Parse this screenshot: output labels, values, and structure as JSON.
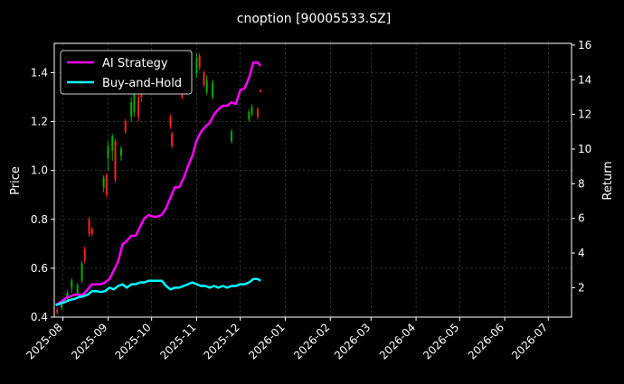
{
  "chart_data": {
    "type": "line",
    "title": "cnoption [90005533.SZ]",
    "left_axis": {
      "label": "Price",
      "ylim": [
        0.4,
        1.52
      ],
      "ticks": [
        "0.4",
        "0.6",
        "0.8",
        "1.0",
        "1.2",
        "1.4"
      ]
    },
    "right_axis": {
      "label": "Return",
      "ylim": [
        0.3,
        16.1
      ],
      "ticks": [
        "2",
        "4",
        "6",
        "8",
        "10",
        "12",
        "14",
        "16"
      ]
    },
    "x_axis": {
      "xlim": [
        "2025-07-26",
        "2026-07-17"
      ],
      "ticks": [
        "2025-08",
        "2025-09",
        "2025-10",
        "2025-11",
        "2025-12",
        "2026-01",
        "2026-02",
        "2026-03",
        "2026-04",
        "2026-05",
        "2026-06",
        "2026-07"
      ]
    },
    "grid": true,
    "legend": {
      "placement": "top-left",
      "entries": [
        {
          "name": "AI Strategy",
          "color": "#ff00ff"
        },
        {
          "name": "Buy-and-Hold",
          "color": "#00ffff"
        }
      ]
    },
    "candle_colors": {
      "up": "#00b000",
      "down": "#ff2020"
    },
    "series": [
      {
        "name": "AI Strategy",
        "axis": "right",
        "color": "#ff00ff",
        "x": [
          "2025-07-27",
          "2025-07-31",
          "2025-08-03",
          "2025-08-06",
          "2025-08-09",
          "2025-08-12",
          "2025-08-15",
          "2025-08-18",
          "2025-08-21",
          "2025-08-24",
          "2025-08-27",
          "2025-08-30",
          "2025-09-02",
          "2025-09-05",
          "2025-09-08",
          "2025-09-11",
          "2025-09-14",
          "2025-09-17",
          "2025-09-20",
          "2025-09-23",
          "2025-09-26",
          "2025-09-29",
          "2025-10-02",
          "2025-10-05",
          "2025-10-08",
          "2025-10-11",
          "2025-10-14",
          "2025-10-17",
          "2025-10-20",
          "2025-10-23",
          "2025-10-26",
          "2025-10-29",
          "2025-11-01",
          "2025-11-04",
          "2025-11-07",
          "2025-11-10",
          "2025-11-13",
          "2025-11-16",
          "2025-11-19",
          "2025-11-22",
          "2025-11-25",
          "2025-11-28",
          "2025-12-01",
          "2025-12-04",
          "2025-12-07",
          "2025-12-10",
          "2025-12-13",
          "2025-12-15"
        ],
        "values": [
          1.0,
          1.2,
          1.4,
          1.5,
          1.6,
          1.6,
          1.6,
          1.9,
          2.2,
          2.2,
          2.2,
          2.3,
          2.5,
          3.0,
          3.5,
          4.5,
          4.7,
          5.0,
          5.0,
          5.5,
          6.0,
          6.2,
          6.1,
          6.1,
          6.2,
          6.6,
          7.2,
          7.8,
          7.8,
          8.3,
          9.0,
          9.6,
          10.5,
          11.0,
          11.3,
          11.5,
          12.0,
          12.3,
          12.5,
          12.5,
          12.7,
          12.6,
          13.4,
          13.5,
          14.1,
          15.0,
          15.0,
          14.8
        ]
      },
      {
        "name": "Buy-and-Hold",
        "axis": "right",
        "color": "#00ffff",
        "x": [
          "2025-07-27",
          "2025-07-31",
          "2025-08-03",
          "2025-08-06",
          "2025-08-09",
          "2025-08-12",
          "2025-08-15",
          "2025-08-18",
          "2025-08-21",
          "2025-08-24",
          "2025-08-27",
          "2025-08-30",
          "2025-09-02",
          "2025-09-05",
          "2025-09-08",
          "2025-09-11",
          "2025-09-14",
          "2025-09-17",
          "2025-09-20",
          "2025-09-23",
          "2025-09-26",
          "2025-09-29",
          "2025-10-02",
          "2025-10-05",
          "2025-10-08",
          "2025-10-11",
          "2025-10-14",
          "2025-10-17",
          "2025-10-20",
          "2025-10-23",
          "2025-10-26",
          "2025-10-29",
          "2025-11-01",
          "2025-11-04",
          "2025-11-07",
          "2025-11-10",
          "2025-11-13",
          "2025-11-16",
          "2025-11-19",
          "2025-11-22",
          "2025-11-25",
          "2025-11-28",
          "2025-12-01",
          "2025-12-04",
          "2025-12-07",
          "2025-12-10",
          "2025-12-13",
          "2025-12-15"
        ],
        "values": [
          1.0,
          1.1,
          1.2,
          1.3,
          1.35,
          1.45,
          1.5,
          1.6,
          1.8,
          1.8,
          1.75,
          1.8,
          2.0,
          1.9,
          2.1,
          2.2,
          2.0,
          2.2,
          2.2,
          2.3,
          2.3,
          2.4,
          2.4,
          2.4,
          2.4,
          2.1,
          1.9,
          2.0,
          2.0,
          2.1,
          2.2,
          2.3,
          2.2,
          2.1,
          2.1,
          2.0,
          2.1,
          2.0,
          2.1,
          2.0,
          2.1,
          2.1,
          2.2,
          2.2,
          2.3,
          2.5,
          2.5,
          2.4
        ]
      }
    ],
    "candles": [
      {
        "x": "2025-07-28",
        "open": 0.43,
        "close": 0.42,
        "high": 0.44,
        "low": 0.41
      },
      {
        "x": "2025-07-31",
        "open": 0.44,
        "close": 0.45,
        "high": 0.46,
        "low": 0.43
      },
      {
        "x": "2025-08-04",
        "open": 0.48,
        "close": 0.5,
        "high": 0.51,
        "low": 0.47
      },
      {
        "x": "2025-08-07",
        "open": 0.52,
        "close": 0.55,
        "high": 0.56,
        "low": 0.5
      },
      {
        "x": "2025-08-11",
        "open": 0.5,
        "close": 0.53,
        "high": 0.54,
        "low": 0.49
      },
      {
        "x": "2025-08-14",
        "open": 0.55,
        "close": 0.62,
        "high": 0.63,
        "low": 0.54
      },
      {
        "x": "2025-08-16",
        "open": 0.68,
        "close": 0.63,
        "high": 0.69,
        "low": 0.62
      },
      {
        "x": "2025-08-19",
        "open": 0.8,
        "close": 0.74,
        "high": 0.81,
        "low": 0.73
      },
      {
        "x": "2025-08-21",
        "open": 0.76,
        "close": 0.74,
        "high": 0.77,
        "low": 0.73
      },
      {
        "x": "2025-08-29",
        "open": 0.93,
        "close": 0.97,
        "high": 0.98,
        "low": 0.91
      },
      {
        "x": "2025-08-31",
        "open": 0.98,
        "close": 0.9,
        "high": 0.99,
        "low": 0.89
      },
      {
        "x": "2025-09-01",
        "open": 1.05,
        "close": 1.1,
        "high": 1.12,
        "low": 1.0
      },
      {
        "x": "2025-09-04",
        "open": 1.08,
        "close": 1.14,
        "high": 1.15,
        "low": 1.04
      },
      {
        "x": "2025-09-06",
        "open": 1.12,
        "close": 0.96,
        "high": 1.13,
        "low": 0.95
      },
      {
        "x": "2025-09-10",
        "open": 1.06,
        "close": 1.09,
        "high": 1.1,
        "low": 1.04
      },
      {
        "x": "2025-09-13",
        "open": 1.2,
        "close": 1.16,
        "high": 1.21,
        "low": 1.15
      },
      {
        "x": "2025-09-17",
        "open": 1.22,
        "close": 1.28,
        "high": 1.3,
        "low": 1.2
      },
      {
        "x": "2025-09-19",
        "open": 1.24,
        "close": 1.33,
        "high": 1.35,
        "low": 1.22
      },
      {
        "x": "2025-09-22",
        "open": 1.3,
        "close": 1.22,
        "high": 1.32,
        "low": 1.2
      },
      {
        "x": "2025-09-24",
        "open": 1.38,
        "close": 1.3,
        "high": 1.4,
        "low": 1.28
      },
      {
        "x": "2025-10-14",
        "open": 1.22,
        "close": 1.18,
        "high": 1.23,
        "low": 1.17
      },
      {
        "x": "2025-10-15",
        "open": 1.15,
        "close": 1.1,
        "high": 1.16,
        "low": 1.09
      },
      {
        "x": "2025-10-19",
        "open": 1.42,
        "close": 1.38,
        "high": 1.43,
        "low": 1.36
      },
      {
        "x": "2025-10-22",
        "open": 1.33,
        "close": 1.3,
        "high": 1.34,
        "low": 1.29
      },
      {
        "x": "2025-11-01",
        "open": 1.4,
        "close": 1.46,
        "high": 1.48,
        "low": 1.38
      },
      {
        "x": "2025-11-03",
        "open": 1.47,
        "close": 1.42,
        "high": 1.48,
        "low": 1.41
      },
      {
        "x": "2025-11-06",
        "open": 1.4,
        "close": 1.35,
        "high": 1.41,
        "low": 1.34
      },
      {
        "x": "2025-11-08",
        "open": 1.32,
        "close": 1.37,
        "high": 1.39,
        "low": 1.31
      },
      {
        "x": "2025-11-12",
        "open": 1.3,
        "close": 1.36,
        "high": 1.37,
        "low": 1.29
      },
      {
        "x": "2025-11-25",
        "open": 1.12,
        "close": 1.16,
        "high": 1.17,
        "low": 1.11
      },
      {
        "x": "2025-12-07",
        "open": 1.21,
        "close": 1.24,
        "high": 1.25,
        "low": 1.2
      },
      {
        "x": "2025-12-09",
        "open": 1.23,
        "close": 1.26,
        "high": 1.27,
        "low": 1.22
      },
      {
        "x": "2025-12-13",
        "open": 1.25,
        "close": 1.22,
        "high": 1.26,
        "low": 1.21
      },
      {
        "x": "2025-12-15",
        "open": 1.33,
        "close": 1.32,
        "high": 1.33,
        "low": 1.32
      }
    ]
  }
}
